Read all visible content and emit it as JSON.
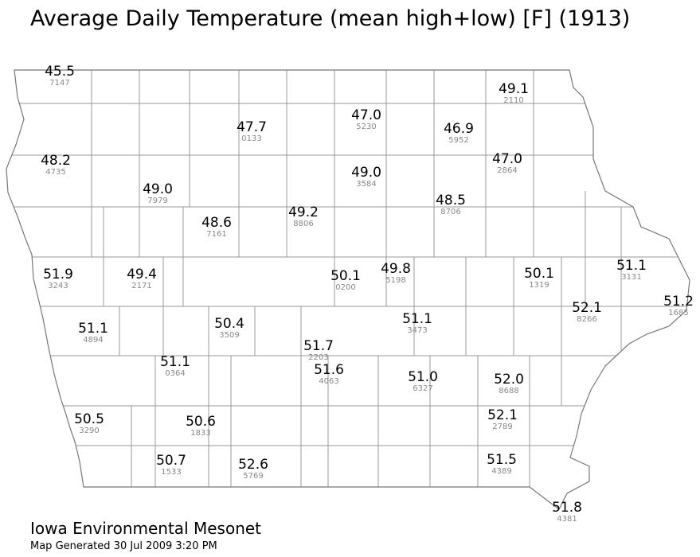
{
  "title": "Average Daily Temperature (mean high+low) [F] (1913)",
  "stations": [
    {
      "value": "45.5",
      "id": "7147"
    },
    {
      "value": "49.1",
      "id": "2110"
    },
    {
      "value": "47.0",
      "id": "5230"
    },
    {
      "value": "47.7",
      "id": "0133"
    },
    {
      "value": "46.9",
      "id": "5952"
    },
    {
      "value": "48.2",
      "id": "4735"
    },
    {
      "value": "47.0",
      "id": "2864"
    },
    {
      "value": "49.0",
      "id": "3584"
    },
    {
      "value": "49.0",
      "id": "7979"
    },
    {
      "value": "48.5",
      "id": "8706"
    },
    {
      "value": "49.2",
      "id": "8806"
    },
    {
      "value": "48.6",
      "id": "7161"
    },
    {
      "value": "51.9",
      "id": "3243"
    },
    {
      "value": "49.4",
      "id": "2171"
    },
    {
      "value": "50.1",
      "id": "0200"
    },
    {
      "value": "49.8",
      "id": "5198"
    },
    {
      "value": "50.1",
      "id": "1319"
    },
    {
      "value": "51.1",
      "id": "3131"
    },
    {
      "value": "52.1",
      "id": "8266"
    },
    {
      "value": "51.2",
      "id": "1685"
    },
    {
      "value": "51.1",
      "id": "4894"
    },
    {
      "value": "50.4",
      "id": "3509"
    },
    {
      "value": "51.1",
      "id": "3473"
    },
    {
      "value": "51.7",
      "id": "2203"
    },
    {
      "value": "51.1",
      "id": "0364"
    },
    {
      "value": "51.6",
      "id": "4063"
    },
    {
      "value": "51.0",
      "id": "6327"
    },
    {
      "value": "52.0",
      "id": "8688"
    },
    {
      "value": "50.5",
      "id": "3290"
    },
    {
      "value": "50.6",
      "id": "1833"
    },
    {
      "value": "52.1",
      "id": "2789"
    },
    {
      "value": "50.7",
      "id": "1533"
    },
    {
      "value": "52.6",
      "id": "5769"
    },
    {
      "value": "51.5",
      "id": "4389"
    },
    {
      "value": "51.8",
      "id": "4381"
    }
  ],
  "footer": {
    "org": "Iowa Environmental Mesonet",
    "generated": "Map Generated 30 Jul 2009 3:20 PM"
  }
}
